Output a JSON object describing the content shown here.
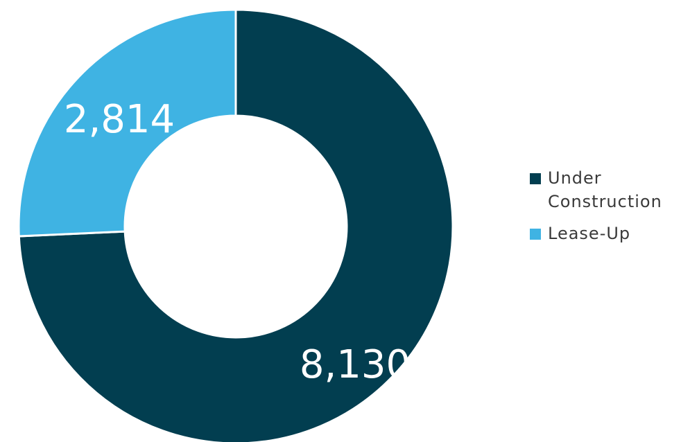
{
  "chart_data": {
    "type": "pie",
    "donut": true,
    "categories": [
      "Under Construction",
      "Lease-Up"
    ],
    "values": [
      8130,
      2814
    ],
    "value_labels": [
      "8,130",
      "2,814"
    ],
    "colors": [
      "#023e50",
      "#3fb3e3"
    ],
    "legend": {
      "placement": "right",
      "items": [
        {
          "label": "Under Construction",
          "color": "#023e50"
        },
        {
          "label": "Lease-Up",
          "color": "#3fb3e3"
        }
      ]
    }
  }
}
